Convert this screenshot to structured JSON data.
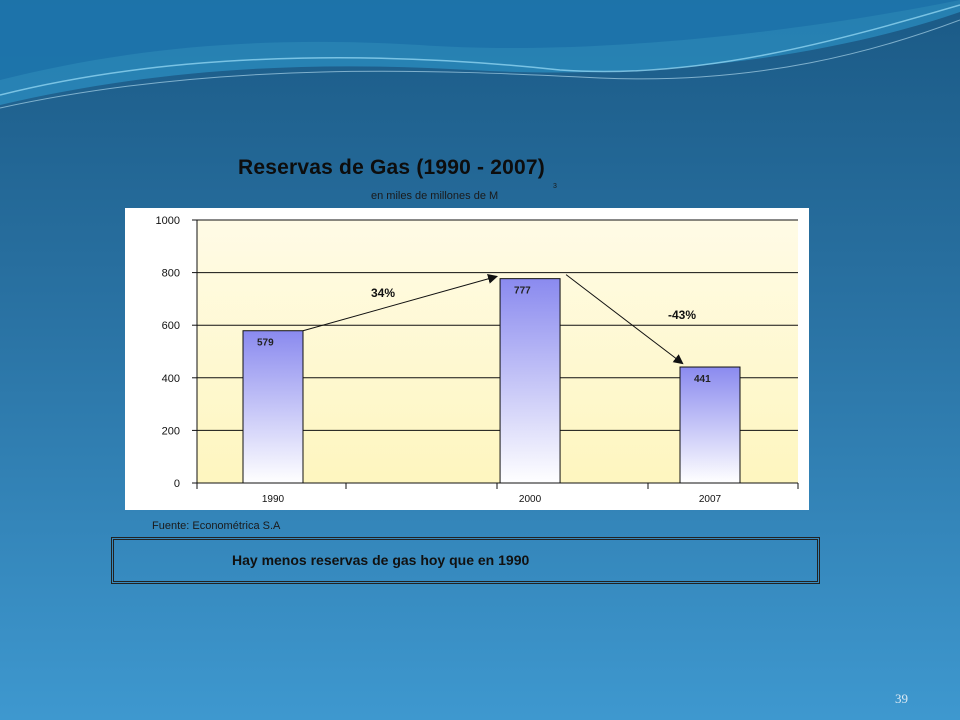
{
  "slide": {
    "title": "Reservas de Gas (1990 - 2007)",
    "subtitle": "en miles de millones de M",
    "subtitle_superscript": "3",
    "source": "Fuente: Econométrica S.A",
    "conclusion": "Hay menos reservas de gas hoy que en 1990",
    "page_number": "39"
  },
  "chart_data": {
    "type": "bar",
    "categories": [
      "1990",
      "2000",
      "2007"
    ],
    "values": [
      579,
      777,
      441
    ],
    "ylim": [
      0,
      1000
    ],
    "yticks": [
      0,
      200,
      400,
      600,
      800,
      1000
    ],
    "grid": true,
    "annotations": [
      {
        "text": "34%",
        "from": "1990",
        "to": "2000"
      },
      {
        "text": "-43%",
        "from": "2000",
        "to": "2007"
      }
    ],
    "colors": {
      "bar_top": "#8a8aef",
      "bar_bottom": "#ffffff",
      "plot_bg_top": "#fffbe6",
      "plot_bg_bottom": "#fef6bf"
    }
  }
}
